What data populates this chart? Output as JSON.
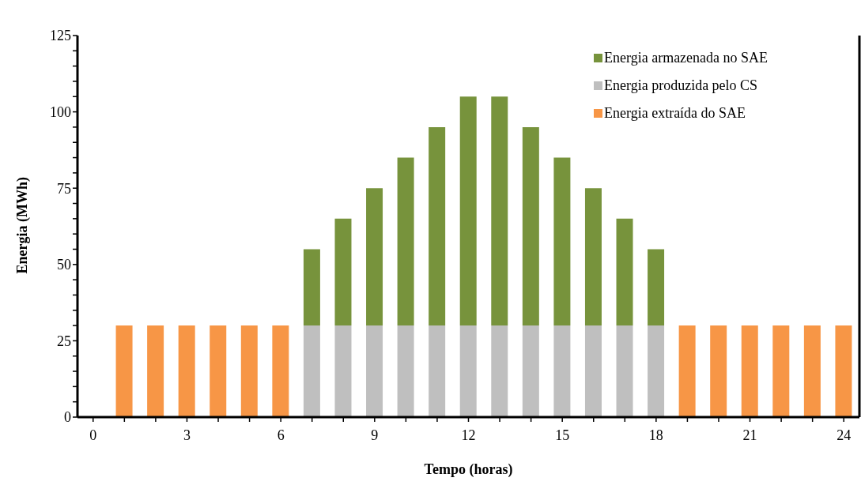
{
  "chart_data": {
    "type": "bar",
    "stacked": true,
    "xlabel": "Tempo (horas)",
    "ylabel": "Energia (MWh)",
    "x": [
      1,
      2,
      3,
      4,
      5,
      6,
      7,
      8,
      9,
      10,
      11,
      12,
      13,
      14,
      15,
      16,
      17,
      18,
      19,
      20,
      21,
      22,
      23,
      24
    ],
    "series": [
      {
        "name": "Energia extraída do SAE",
        "color": "#f79646",
        "values": [
          30,
          30,
          30,
          30,
          30,
          30,
          null,
          null,
          null,
          null,
          null,
          null,
          null,
          null,
          null,
          null,
          null,
          null,
          30,
          30,
          30,
          30,
          30,
          30
        ]
      },
      {
        "name": "Energia produzida pelo CS",
        "color": "#bfbfbf",
        "values": [
          null,
          null,
          null,
          null,
          null,
          null,
          30,
          30,
          30,
          30,
          30,
          30,
          30,
          30,
          30,
          30,
          30,
          30,
          null,
          null,
          null,
          null,
          null,
          null
        ]
      },
      {
        "name": "Energia armazenada no SAE",
        "color": "#77933c",
        "values": [
          null,
          null,
          null,
          null,
          null,
          null,
          25,
          35,
          45,
          55,
          65,
          75,
          75,
          65,
          55,
          45,
          35,
          25,
          null,
          null,
          null,
          null,
          null,
          null
        ]
      }
    ],
    "xlim": [
      -0.5,
      24.5
    ],
    "xticks": [
      0,
      {
        "value": 1,
        "label": null
      },
      {
        "value": 2,
        "label": null
      },
      3,
      {
        "value": 4,
        "label": null
      },
      {
        "value": 5,
        "label": null
      },
      6,
      {
        "value": 7,
        "label": null
      },
      {
        "value": 8,
        "label": null
      },
      9,
      {
        "value": 10,
        "label": null
      },
      {
        "value": 11,
        "label": null
      },
      12,
      {
        "value": 13,
        "label": null
      },
      {
        "value": 14,
        "label": null
      },
      15,
      {
        "value": 16,
        "label": null
      },
      {
        "value": 17,
        "label": null
      },
      18,
      {
        "value": 19,
        "label": null
      },
      {
        "value": 20,
        "label": null
      },
      21,
      {
        "value": 22,
        "label": null
      },
      {
        "value": 23,
        "label": null
      },
      24
    ],
    "ylim": [
      0,
      125
    ],
    "yticks": [
      0,
      {
        "value": 5,
        "label": null
      },
      {
        "value": 10,
        "label": null
      },
      {
        "value": 15,
        "label": null
      },
      {
        "value": 20,
        "label": null
      },
      25,
      {
        "value": 30,
        "label": null
      },
      {
        "value": 35,
        "label": null
      },
      {
        "value": 40,
        "label": null
      },
      {
        "value": 45,
        "label": null
      },
      50,
      {
        "value": 55,
        "label": null
      },
      {
        "value": 60,
        "label": null
      },
      {
        "value": 65,
        "label": null
      },
      {
        "value": 70,
        "label": null
      },
      75,
      {
        "value": 80,
        "label": null
      },
      {
        "value": 85,
        "label": null
      },
      {
        "value": 90,
        "label": null
      },
      {
        "value": 95,
        "label": null
      },
      100,
      {
        "value": 105,
        "label": null
      },
      {
        "value": 110,
        "label": null
      },
      {
        "value": 115,
        "label": null
      },
      {
        "value": 120,
        "label": null
      },
      125
    ],
    "grid": false,
    "legend": "top right"
  }
}
